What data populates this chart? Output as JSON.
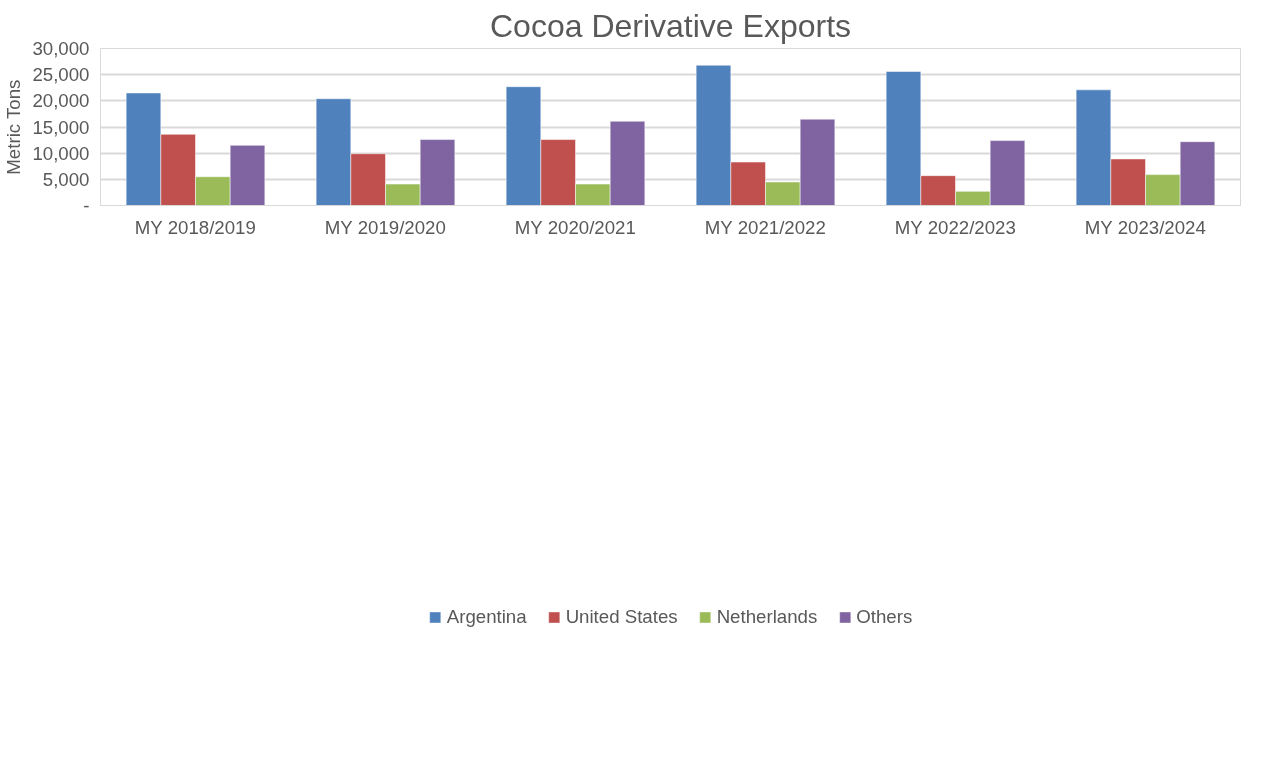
{
  "chart_data": {
    "type": "bar",
    "title": "Cocoa Derivative Exports",
    "ylabel": "Metric Tons",
    "categories": [
      "MY 2018/2019",
      "MY 2019/2020",
      "MY 2020/2021",
      "MY 2021/2022",
      "MY 2022/2023",
      "MY 2023/2024"
    ],
    "series": [
      {
        "name": "Argentina",
        "color": "#4f81bd",
        "values": [
          21500,
          20400,
          22700,
          26800,
          25600,
          22100
        ]
      },
      {
        "name": "United States",
        "color": "#c0504d",
        "values": [
          13600,
          9900,
          12600,
          8300,
          5700,
          8900
        ]
      },
      {
        "name": "Netherlands",
        "color": "#9bbb59",
        "values": [
          5500,
          4100,
          4100,
          4500,
          2700,
          5900
        ]
      },
      {
        "name": "Others",
        "color": "#8064a2",
        "values": [
          11500,
          12600,
          16100,
          16500,
          12400,
          12200
        ]
      }
    ],
    "ylim": [
      0,
      30000
    ],
    "yticks": [
      {
        "value": 0,
        "label": "-"
      },
      {
        "value": 5000,
        "label": "5,000"
      },
      {
        "value": 10000,
        "label": "10,000"
      },
      {
        "value": 15000,
        "label": "15,000"
      },
      {
        "value": 20000,
        "label": "20,000"
      },
      {
        "value": 25000,
        "label": "25,000"
      },
      {
        "value": 30000,
        "label": "30,000"
      }
    ],
    "grid": "y",
    "legend": "bottom"
  }
}
